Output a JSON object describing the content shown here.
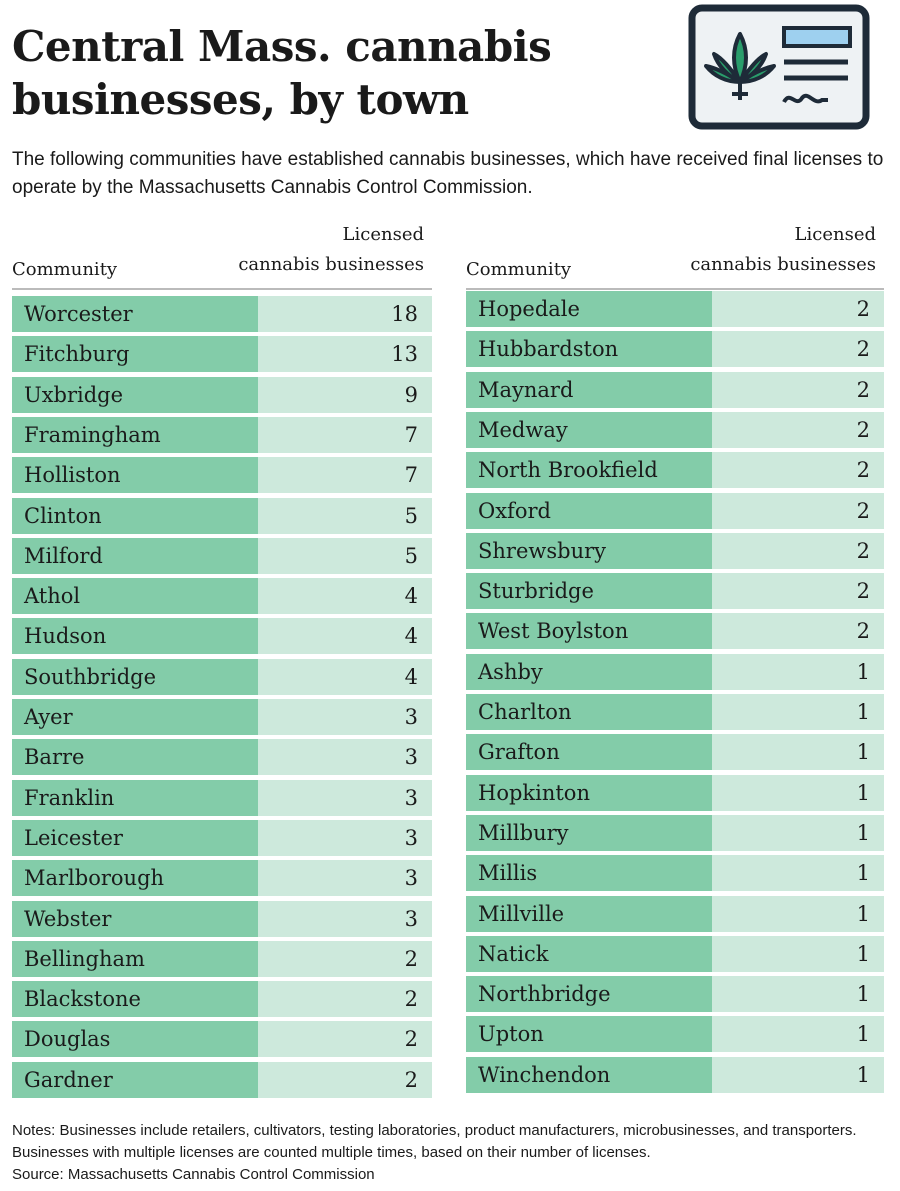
{
  "title": "Central Mass. cannabis businesses, by town",
  "subtitle": "The following communities have established cannabis businesses, which have received final licenses to operate by the Massachusetts Cannabis Control Commission.",
  "tables": [
    {
      "header": {
        "community": "Community",
        "licensed": [
          "Licensed",
          "cannabis businesses"
        ]
      },
      "rows": [
        [
          "Worcester",
          18
        ],
        [
          "Fitchburg",
          13
        ],
        [
          "Uxbridge",
          9
        ],
        [
          "Framingham",
          7
        ],
        [
          "Holliston",
          7
        ],
        [
          "Clinton",
          5
        ],
        [
          "Milford",
          5
        ],
        [
          "Athol",
          4
        ],
        [
          "Hudson",
          4
        ],
        [
          "Southbridge",
          4
        ],
        [
          "Ayer",
          3
        ],
        [
          "Barre",
          3
        ],
        [
          "Franklin",
          3
        ],
        [
          "Leicester",
          3
        ],
        [
          "Marlborough",
          3
        ],
        [
          "Webster",
          3
        ],
        [
          "Bellingham",
          2
        ],
        [
          "Blackstone",
          2
        ],
        [
          "Douglas",
          2
        ],
        [
          "Gardner",
          2
        ]
      ]
    },
    {
      "header": {
        "community": "Community",
        "licensed": [
          "Licensed",
          "cannabis businesses"
        ]
      },
      "rows": [
        [
          "Hopedale",
          2
        ],
        [
          "Hubbardston",
          2
        ],
        [
          "Maynard",
          2
        ],
        [
          "Medway",
          2
        ],
        [
          "North Brookfield",
          2
        ],
        [
          "Oxford",
          2
        ],
        [
          "Shrewsbury",
          2
        ],
        [
          "Sturbridge",
          2
        ],
        [
          "West Boylston",
          2
        ],
        [
          "Ashby",
          1
        ],
        [
          "Charlton",
          1
        ],
        [
          "Grafton",
          1
        ],
        [
          "Hopkinton",
          1
        ],
        [
          "Millbury",
          1
        ],
        [
          "Millis",
          1
        ],
        [
          "Millville",
          1
        ],
        [
          "Natick",
          1
        ],
        [
          "Northbridge",
          1
        ],
        [
          "Upton",
          1
        ],
        [
          "Winchendon",
          1
        ]
      ]
    }
  ],
  "notes": "Notes: Businesses include retailers, cultivators, testing laboratories, product manufacturers, microbusinesses, and transporters. Businesses with multiple licenses are counted multiple times, based on their number of licenses.",
  "source": "Source: Massachusetts Cannabis Control Commission"
}
